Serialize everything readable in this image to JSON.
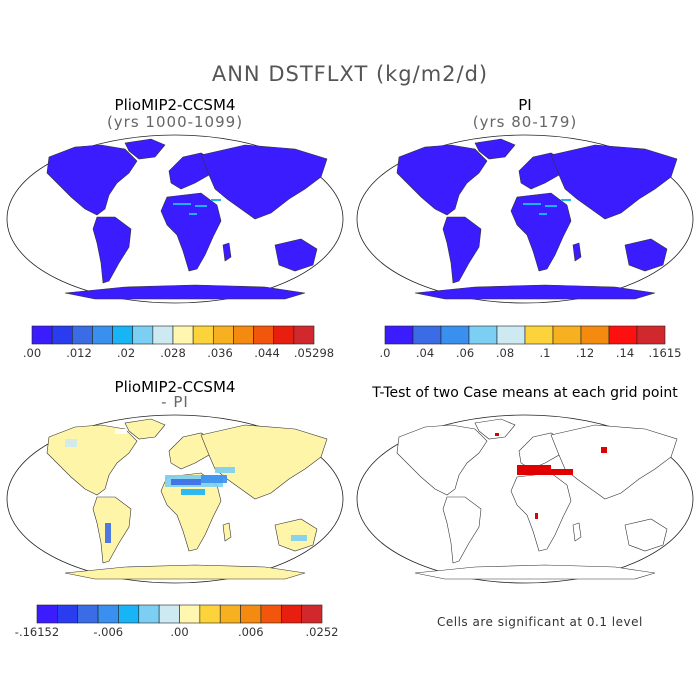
{
  "title": "ANN DSTFLXT (kg/m2/d)",
  "panels": [
    {
      "id": "tl",
      "title": "PlioMIP2-CCSM4",
      "subtitle": "(yrs 1000-1099)",
      "fill": "uniform-low",
      "landColor": "#3a1cff"
    },
    {
      "id": "tr",
      "title": "PI",
      "subtitle": "(yrs 80-179)",
      "fill": "uniform-low",
      "landColor": "#3a1cff"
    },
    {
      "id": "bl",
      "title": "PlioMIP2-CCSM4",
      "subtitle": "- PI",
      "fill": "diff",
      "landColor": "#fff5a8"
    },
    {
      "id": "br",
      "title": "T-Test of two Case means at each grid point",
      "subtitle": "",
      "fill": "ttest",
      "landColor": "#ffffff"
    }
  ],
  "colorbars": {
    "tl": {
      "colors": [
        "#3a1cff",
        "#2a3cf0",
        "#3a6ce6",
        "#3a90ee",
        "#18b4f5",
        "#7ccef2",
        "#cde9f2",
        "#fff6b0",
        "#fcd33a",
        "#f6b020",
        "#f48a10",
        "#f2560c",
        "#e81e0e",
        "#d0282c"
      ],
      "labels": [
        ".00",
        ".012",
        ".02",
        ".028",
        ".036",
        ".044",
        ".05298"
      ]
    },
    "tr": {
      "colors": [
        "#3a1cff",
        "#3a6ce6",
        "#3a90ee",
        "#7ccef2",
        "#cde9f2",
        "#fcd33a",
        "#f6b020",
        "#f48a10",
        "#ff1010",
        "#d0282c"
      ],
      "labels": [
        ".0",
        ".04",
        ".06",
        ".08",
        ".1",
        ".12",
        ".14",
        ".1615"
      ]
    },
    "bl": {
      "colors": [
        "#3a1cff",
        "#2a3cf0",
        "#3a6ce6",
        "#3a90ee",
        "#18b4f5",
        "#7ccef2",
        "#cde9f2",
        "#fff6b0",
        "#fcd33a",
        "#f6b020",
        "#f48a10",
        "#f2560c",
        "#e81e0e",
        "#d0282c"
      ],
      "labels": [
        "-.16152",
        "-.006",
        ".00",
        ".006",
        ".0252"
      ]
    }
  },
  "footnote": "Cells are significant at 0.1 level"
}
